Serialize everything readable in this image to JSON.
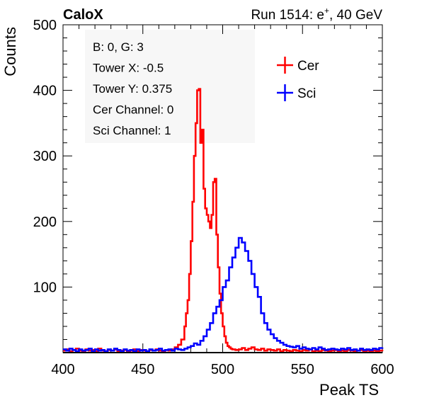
{
  "header": {
    "experiment": "CaloX",
    "run_prefix": "Run 1514: e",
    "run_sup": "+",
    "run_suffix": ", 40 GeV"
  },
  "info_box": {
    "lines": [
      "B: 0, G: 3",
      "Tower X: -0.5",
      "Tower Y: 0.375",
      "Cer Channel: 0",
      "Sci Channel: 1"
    ]
  },
  "chart_data": {
    "type": "line",
    "xlabel": "Peak TS",
    "ylabel": "Counts",
    "xlim": [
      400,
      600
    ],
    "ylim": [
      0,
      500
    ],
    "x_ticks": [
      "400",
      "450",
      "500",
      "550",
      "600"
    ],
    "y_ticks": [
      "100",
      "200",
      "300",
      "400",
      "500"
    ],
    "x_tick_values": [
      400,
      450,
      500,
      550,
      600
    ],
    "y_tick_values": [
      100,
      200,
      300,
      400,
      500
    ],
    "legend_position": "top-right",
    "colors": {
      "cer": "#ff0000",
      "sci": "#0000ff"
    },
    "series": [
      {
        "name": "Cer",
        "color": "#ff0000",
        "x": [
          400,
          402,
          404,
          406,
          408,
          410,
          412,
          414,
          416,
          418,
          420,
          422,
          424,
          426,
          428,
          430,
          432,
          434,
          436,
          438,
          440,
          442,
          444,
          446,
          448,
          450,
          452,
          454,
          456,
          458,
          460,
          462,
          464,
          466,
          468,
          470,
          472,
          474,
          476,
          477,
          478,
          479,
          480,
          481,
          482,
          483,
          484,
          485,
          486,
          487,
          488,
          489,
          490,
          491,
          492,
          493,
          494,
          495,
          496,
          497,
          498,
          499,
          500,
          501,
          502,
          503,
          504,
          505,
          506,
          508,
          510,
          512,
          514,
          516,
          518,
          520,
          522,
          524,
          526,
          528,
          530,
          532,
          534,
          536,
          538,
          540,
          542,
          544,
          546,
          548,
          550,
          552,
          554,
          556,
          558,
          560,
          562,
          564,
          566,
          568,
          570,
          572,
          574,
          576,
          578,
          580,
          582,
          584,
          586,
          588,
          590,
          592,
          594,
          596,
          598,
          600
        ],
        "values": [
          3,
          5,
          2,
          4,
          6,
          3,
          2,
          5,
          3,
          4,
          2,
          6,
          3,
          2,
          4,
          3,
          5,
          2,
          3,
          4,
          2,
          3,
          5,
          2,
          4,
          3,
          2,
          4,
          3,
          5,
          3,
          2,
          4,
          3,
          5,
          8,
          12,
          20,
          40,
          60,
          80,
          120,
          170,
          230,
          300,
          350,
          400,
          402,
          320,
          340,
          250,
          220,
          210,
          200,
          190,
          210,
          260,
          265,
          180,
          130,
          90,
          60,
          40,
          25,
          15,
          10,
          8,
          6,
          5,
          4,
          5,
          7,
          4,
          6,
          8,
          5,
          4,
          6,
          3,
          5,
          4,
          3,
          5,
          2,
          4,
          3,
          2,
          4,
          3,
          2,
          4,
          3,
          5,
          2,
          3,
          2,
          4,
          3,
          2,
          3,
          4,
          2,
          3,
          2,
          4,
          3,
          2,
          3,
          4,
          2,
          3,
          2,
          3,
          2,
          3,
          2
        ]
      },
      {
        "name": "Sci",
        "color": "#0000ff",
        "x": [
          400,
          402,
          404,
          406,
          408,
          410,
          412,
          414,
          416,
          418,
          420,
          422,
          424,
          426,
          428,
          430,
          432,
          434,
          436,
          438,
          440,
          442,
          444,
          446,
          448,
          450,
          452,
          454,
          456,
          458,
          460,
          462,
          464,
          466,
          468,
          470,
          472,
          474,
          476,
          478,
          480,
          482,
          484,
          486,
          488,
          490,
          492,
          494,
          496,
          498,
          500,
          502,
          504,
          506,
          508,
          510,
          512,
          514,
          516,
          518,
          520,
          522,
          524,
          526,
          528,
          530,
          532,
          534,
          536,
          538,
          540,
          542,
          544,
          546,
          548,
          550,
          552,
          554,
          556,
          558,
          560,
          562,
          564,
          566,
          568,
          570,
          572,
          574,
          576,
          578,
          580,
          582,
          584,
          586,
          588,
          590,
          592,
          594,
          596,
          598,
          600
        ],
        "values": [
          5,
          3,
          6,
          4,
          2,
          5,
          3,
          4,
          6,
          2,
          5,
          3,
          4,
          2,
          5,
          3,
          6,
          4,
          2,
          5,
          3,
          4,
          2,
          5,
          3,
          4,
          2,
          5,
          3,
          4,
          6,
          3,
          4,
          5,
          3,
          6,
          5,
          4,
          6,
          8,
          10,
          14,
          12,
          18,
          25,
          35,
          45,
          60,
          70,
          80,
          100,
          110,
          130,
          145,
          160,
          175,
          168,
          155,
          140,
          120,
          100,
          85,
          60,
          45,
          35,
          28,
          22,
          18,
          15,
          12,
          10,
          9,
          8,
          10,
          6,
          8,
          6,
          5,
          7,
          5,
          8,
          6,
          4,
          5,
          6,
          5,
          4,
          6,
          5,
          7,
          4,
          5,
          3,
          6,
          4,
          5,
          4,
          6,
          5,
          7,
          8
        ]
      }
    ]
  }
}
